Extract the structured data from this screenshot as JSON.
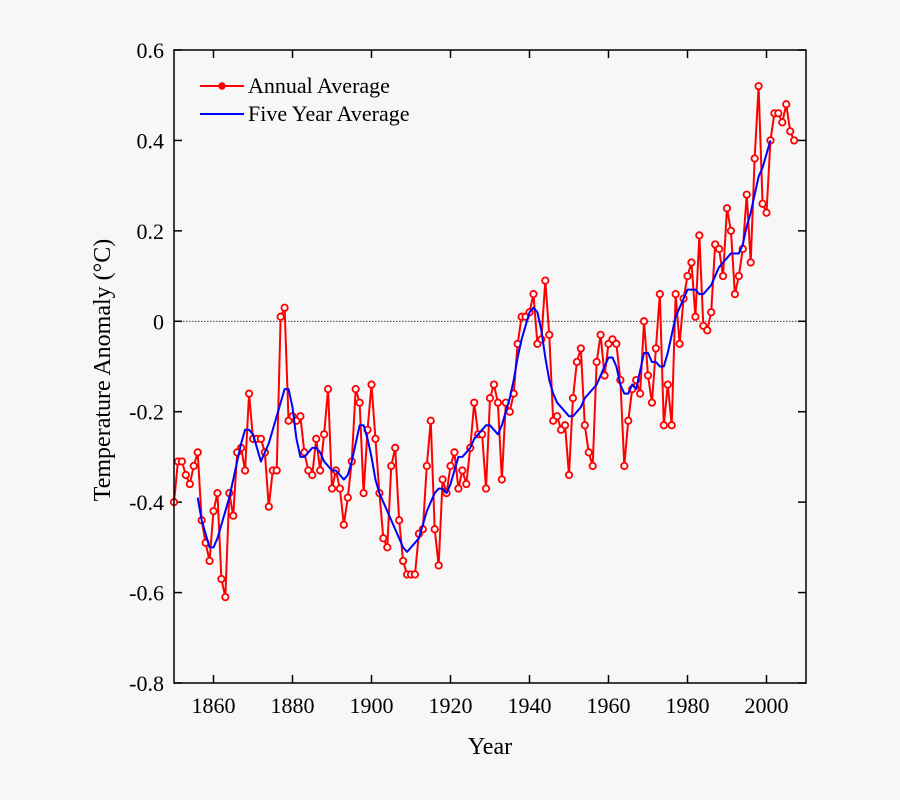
{
  "chart_data": {
    "type": "line",
    "xlabel": "Year",
    "ylabel": "Temperature Anomaly (°C)",
    "xlim": [
      1850,
      2010
    ],
    "ylim": [
      -0.8,
      0.6
    ],
    "xticks": [
      1860,
      1880,
      1900,
      1920,
      1940,
      1960,
      1980,
      2000
    ],
    "yticks": [
      0.6,
      0.4,
      0.2,
      0,
      -0.2,
      -0.4,
      -0.6,
      -0.8
    ],
    "zero_line": true,
    "legend": "upper-left",
    "x": [
      1850,
      1851,
      1852,
      1853,
      1854,
      1855,
      1856,
      1857,
      1858,
      1859,
      1860,
      1861,
      1862,
      1863,
      1864,
      1865,
      1866,
      1867,
      1868,
      1869,
      1870,
      1871,
      1872,
      1873,
      1874,
      1875,
      1876,
      1877,
      1878,
      1879,
      1880,
      1881,
      1882,
      1883,
      1884,
      1885,
      1886,
      1887,
      1888,
      1889,
      1890,
      1891,
      1892,
      1893,
      1894,
      1895,
      1896,
      1897,
      1898,
      1899,
      1900,
      1901,
      1902,
      1903,
      1904,
      1905,
      1906,
      1907,
      1908,
      1909,
      1910,
      1911,
      1912,
      1913,
      1914,
      1915,
      1916,
      1917,
      1918,
      1919,
      1920,
      1921,
      1922,
      1923,
      1924,
      1925,
      1926,
      1927,
      1928,
      1929,
      1930,
      1931,
      1932,
      1933,
      1934,
      1935,
      1936,
      1937,
      1938,
      1939,
      1940,
      1941,
      1942,
      1943,
      1944,
      1945,
      1946,
      1947,
      1948,
      1949,
      1950,
      1951,
      1952,
      1953,
      1954,
      1955,
      1956,
      1957,
      1958,
      1959,
      1960,
      1961,
      1962,
      1963,
      1964,
      1965,
      1966,
      1967,
      1968,
      1969,
      1970,
      1971,
      1972,
      1973,
      1974,
      1975,
      1976,
      1977,
      1978,
      1979,
      1980,
      1981,
      1982,
      1983,
      1984,
      1985,
      1986,
      1987,
      1988,
      1989,
      1990,
      1991,
      1992,
      1993,
      1994,
      1995,
      1996,
      1997,
      1998,
      1999,
      2000,
      2001,
      2002,
      2003,
      2004,
      2005,
      2006,
      2007
    ],
    "series": [
      {
        "name": "Annual Average",
        "color": "#ff0000",
        "marker": true,
        "values": [
          -0.4,
          -0.31,
          -0.31,
          -0.34,
          -0.36,
          -0.32,
          -0.29,
          -0.44,
          -0.49,
          -0.53,
          -0.42,
          -0.38,
          -0.57,
          -0.61,
          -0.38,
          -0.43,
          -0.29,
          -0.28,
          -0.33,
          -0.16,
          -0.26,
          -0.26,
          -0.26,
          -0.29,
          -0.41,
          -0.33,
          -0.33,
          0.01,
          0.03,
          -0.22,
          -0.21,
          -0.22,
          -0.21,
          -0.29,
          -0.33,
          -0.34,
          -0.26,
          -0.33,
          -0.25,
          -0.15,
          -0.37,
          -0.33,
          -0.37,
          -0.45,
          -0.39,
          -0.31,
          -0.15,
          -0.18,
          -0.38,
          -0.24,
          -0.14,
          -0.26,
          -0.38,
          -0.48,
          -0.5,
          -0.32,
          -0.28,
          -0.44,
          -0.53,
          -0.56,
          -0.56,
          -0.56,
          -0.47,
          -0.46,
          -0.32,
          -0.22,
          -0.46,
          -0.54,
          -0.35,
          -0.38,
          -0.32,
          -0.29,
          -0.37,
          -0.33,
          -0.36,
          -0.28,
          -0.18,
          -0.25,
          -0.25,
          -0.37,
          -0.17,
          -0.14,
          -0.18,
          -0.35,
          -0.18,
          -0.2,
          -0.16,
          -0.05,
          0.01,
          0.01,
          0.02,
          0.06,
          -0.05,
          -0.04,
          0.09,
          -0.03,
          -0.22,
          -0.21,
          -0.24,
          -0.23,
          -0.34,
          -0.17,
          -0.09,
          -0.06,
          -0.23,
          -0.29,
          -0.32,
          -0.09,
          -0.03,
          -0.12,
          -0.05,
          -0.04,
          -0.05,
          -0.13,
          -0.32,
          -0.22,
          -0.15,
          -0.13,
          -0.16,
          0.0,
          -0.12,
          -0.18,
          -0.06,
          0.06,
          -0.23,
          -0.14,
          -0.23,
          0.06,
          -0.05,
          0.05,
          0.1,
          0.13,
          0.01,
          0.19,
          -0.01,
          -0.02,
          0.02,
          0.17,
          0.16,
          0.1,
          0.25,
          0.2,
          0.06,
          0.1,
          0.16,
          0.28,
          0.13,
          0.36,
          0.52,
          0.26,
          0.24,
          0.4,
          0.46,
          0.46,
          0.44,
          0.48,
          0.42,
          0.4
        ]
      },
      {
        "name": "Five Year Average",
        "color": "#0000ff",
        "marker": false,
        "values": [
          null,
          null,
          null,
          null,
          null,
          null,
          -0.39,
          -0.44,
          -0.47,
          -0.5,
          -0.5,
          -0.48,
          -0.45,
          -0.42,
          -0.39,
          -0.35,
          -0.31,
          -0.27,
          -0.24,
          -0.24,
          -0.25,
          -0.28,
          -0.31,
          -0.29,
          -0.27,
          -0.24,
          -0.21,
          -0.18,
          -0.15,
          -0.15,
          -0.19,
          -0.26,
          -0.3,
          -0.3,
          -0.29,
          -0.28,
          -0.28,
          -0.29,
          -0.31,
          -0.32,
          -0.33,
          -0.33,
          -0.34,
          -0.35,
          -0.34,
          -0.31,
          -0.27,
          -0.23,
          -0.23,
          -0.26,
          -0.3,
          -0.35,
          -0.38,
          -0.4,
          -0.42,
          -0.44,
          -0.46,
          -0.48,
          -0.5,
          -0.51,
          -0.5,
          -0.49,
          -0.48,
          -0.45,
          -0.42,
          -0.4,
          -0.38,
          -0.37,
          -0.37,
          -0.38,
          -0.36,
          -0.33,
          -0.3,
          -0.3,
          -0.29,
          -0.28,
          -0.26,
          -0.25,
          -0.24,
          -0.23,
          -0.23,
          -0.24,
          -0.25,
          -0.23,
          -0.2,
          -0.17,
          -0.13,
          -0.08,
          -0.04,
          -0.01,
          0.02,
          0.03,
          0.02,
          -0.02,
          -0.08,
          -0.13,
          -0.16,
          -0.18,
          -0.19,
          -0.2,
          -0.21,
          -0.21,
          -0.2,
          -0.19,
          -0.17,
          -0.16,
          -0.15,
          -0.14,
          -0.12,
          -0.1,
          -0.08,
          -0.08,
          -0.1,
          -0.14,
          -0.16,
          -0.16,
          -0.14,
          -0.15,
          -0.11,
          -0.07,
          -0.07,
          -0.09,
          -0.09,
          -0.1,
          -0.1,
          -0.07,
          -0.03,
          0.01,
          0.03,
          0.05,
          0.07,
          0.07,
          0.07,
          0.06,
          0.06,
          0.07,
          0.08,
          0.1,
          0.12,
          0.13,
          0.14,
          0.15,
          0.15,
          0.15,
          0.17,
          0.21,
          0.24,
          0.28,
          0.32,
          0.34,
          0.37,
          0.4,
          null,
          null,
          null,
          null,
          null,
          null
        ]
      }
    ]
  }
}
